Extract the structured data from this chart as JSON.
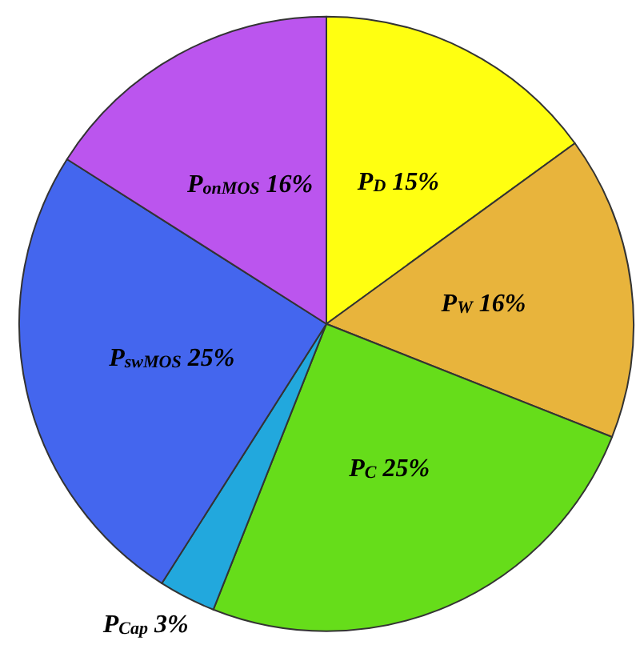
{
  "chart_data": {
    "type": "pie",
    "categories": [
      "P$_{D}$",
      "P$_{W}$",
      "P$_{C}$",
      "P$_{Cap}$",
      "P$_{swMOS}$",
      "P$_{onMOS}$"
    ],
    "values": [
      15,
      16,
      25,
      3,
      25,
      16
    ],
    "value_labels": [
      "15%",
      "16%",
      "25%",
      "3%",
      "25%",
      "16%"
    ],
    "colors": [
      "#ffff11",
      "#e8b43c",
      "#66dd1a",
      "#22a8dd",
      "#4466ee",
      "#bb55ee"
    ],
    "legend": false
  }
}
